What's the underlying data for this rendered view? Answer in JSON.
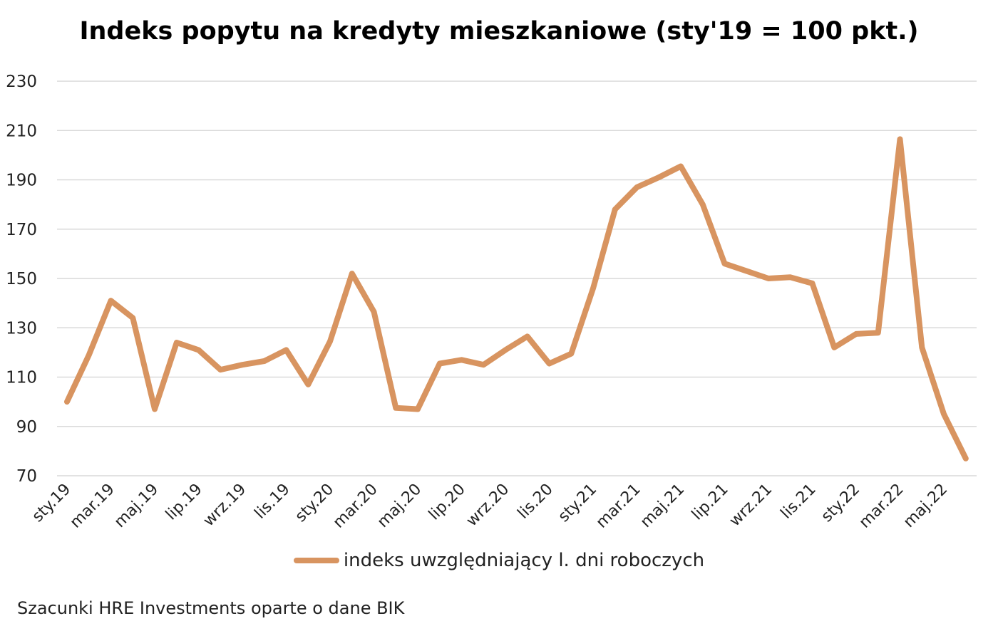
{
  "chart_data": {
    "type": "line",
    "title": "Indeks popytu na kredyty mieszkaniowe (sty'19 = 100 pkt.)",
    "xlabel": "",
    "ylabel": "",
    "ylim": [
      70,
      230
    ],
    "yticks": [
      70,
      90,
      110,
      130,
      150,
      170,
      190,
      210,
      230
    ],
    "grid": true,
    "legend_position": "bottom",
    "x": [
      "sty.19",
      "lut.19",
      "mar.19",
      "kwi.19",
      "maj.19",
      "cze.19",
      "lip.19",
      "sie.19",
      "wrz.19",
      "paź.19",
      "lis.19",
      "gru.19",
      "sty.20",
      "lut.20",
      "mar.20",
      "kwi.20",
      "maj.20",
      "cze.20",
      "lip.20",
      "sie.20",
      "wrz.20",
      "paź.20",
      "lis.20",
      "gru.20",
      "sty.21",
      "lut.21",
      "mar.21",
      "kwi.21",
      "maj.21",
      "cze.21",
      "lip.21",
      "sie.21",
      "wrz.21",
      "paź.21",
      "lis.21",
      "gru.21",
      "sty.22",
      "lut.22",
      "mar.22",
      "kwi.22",
      "maj.22",
      "cze.22"
    ],
    "tick_labels": [
      "sty.19",
      "mar.19",
      "maj.19",
      "lip.19",
      "wrz.19",
      "lis.19",
      "sty.20",
      "mar.20",
      "maj.20",
      "lip.20",
      "wrz.20",
      "lis.20",
      "sty.21",
      "mar.21",
      "maj.21",
      "lip.21",
      "wrz.21",
      "lis.21",
      "sty.22",
      "mar.22",
      "maj.22"
    ],
    "series": [
      {
        "name": "indeks uwzględniający l. dni roboczych",
        "color": "#d89460",
        "values": [
          100,
          119,
          141,
          134,
          97,
          124,
          121,
          113,
          115,
          116.5,
          121,
          107,
          124.5,
          152,
          136.5,
          97.5,
          97,
          115.5,
          117,
          115,
          121,
          126.5,
          115.5,
          119.5,
          146,
          178,
          187,
          191,
          195.5,
          180,
          156,
          153,
          150,
          150.5,
          148,
          122,
          127.5,
          128,
          206.5,
          122,
          95,
          77
        ]
      }
    ]
  },
  "source_note": "Szacunki HRE Investments oparte o dane BIK"
}
